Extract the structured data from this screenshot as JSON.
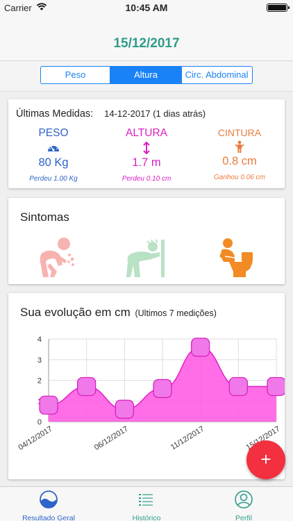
{
  "status_bar": {
    "carrier": "Carrier",
    "time": "10:45 AM"
  },
  "header": {
    "date": "15/12/2017"
  },
  "segments": [
    {
      "label": "Peso",
      "active": false
    },
    {
      "label": "Altura",
      "active": true
    },
    {
      "label": "Circ. Abdominal",
      "active": false
    }
  ],
  "measures": {
    "title": "Últimas Medidas:",
    "last_date": "14-12-2017 (1 dias atrás)",
    "peso": {
      "label": "PESO",
      "value": "80 Kg",
      "delta": "Perdeu 1.00 Kg",
      "icon": "gauge-icon"
    },
    "altura": {
      "label": "ALTURA",
      "value": "1.7 m",
      "delta": "Perdeu 0.10 cm",
      "icon": "height-arrows-icon"
    },
    "cintura": {
      "label": "CINTURA",
      "value": "0.8 cm",
      "delta": "Ganhou 0.06 cm",
      "icon": "waist-figure-icon"
    }
  },
  "symptoms": {
    "title": "Sintomas",
    "items": [
      {
        "icon": "vomiting-person-icon",
        "active": false
      },
      {
        "icon": "leaning-wall-person-icon",
        "active": false
      },
      {
        "icon": "toilet-person-icon",
        "active": true
      }
    ]
  },
  "chart": {
    "title": "Sua evolução em cm",
    "subtitle": "(Ultimos 7 medições)"
  },
  "chart_data": {
    "type": "area",
    "title": "Sua evolução em cm",
    "subtitle": "(Ultimos 7 medições)",
    "x": [
      "04/12/2017",
      "",
      "06/12/2017",
      "",
      "11/12/2017",
      "",
      "15/12/2017"
    ],
    "x_tick_labels": [
      "04/12/2017",
      "06/12/2017",
      "11/12/2017",
      "15/12/2017"
    ],
    "series": [
      {
        "values": [
          0.8,
          1.7,
          0.6,
          1.6,
          3.6,
          1.7,
          1.7
        ]
      }
    ],
    "ylim": [
      0,
      4
    ],
    "y_ticks": [
      0,
      1,
      2,
      3,
      4
    ],
    "grid": true,
    "colors": {
      "fill": "#ff55e2",
      "line": "#e020c8",
      "marker": "#f078e8"
    }
  },
  "fab": {
    "label": "+"
  },
  "tabbar": {
    "items": [
      {
        "label": "Resultado Geral",
        "icon": "waves-circle-icon",
        "active": true
      },
      {
        "label": "Histórico",
        "icon": "list-icon",
        "active": false
      },
      {
        "label": "Perfil",
        "icon": "user-circle-icon",
        "active": false
      }
    ]
  }
}
